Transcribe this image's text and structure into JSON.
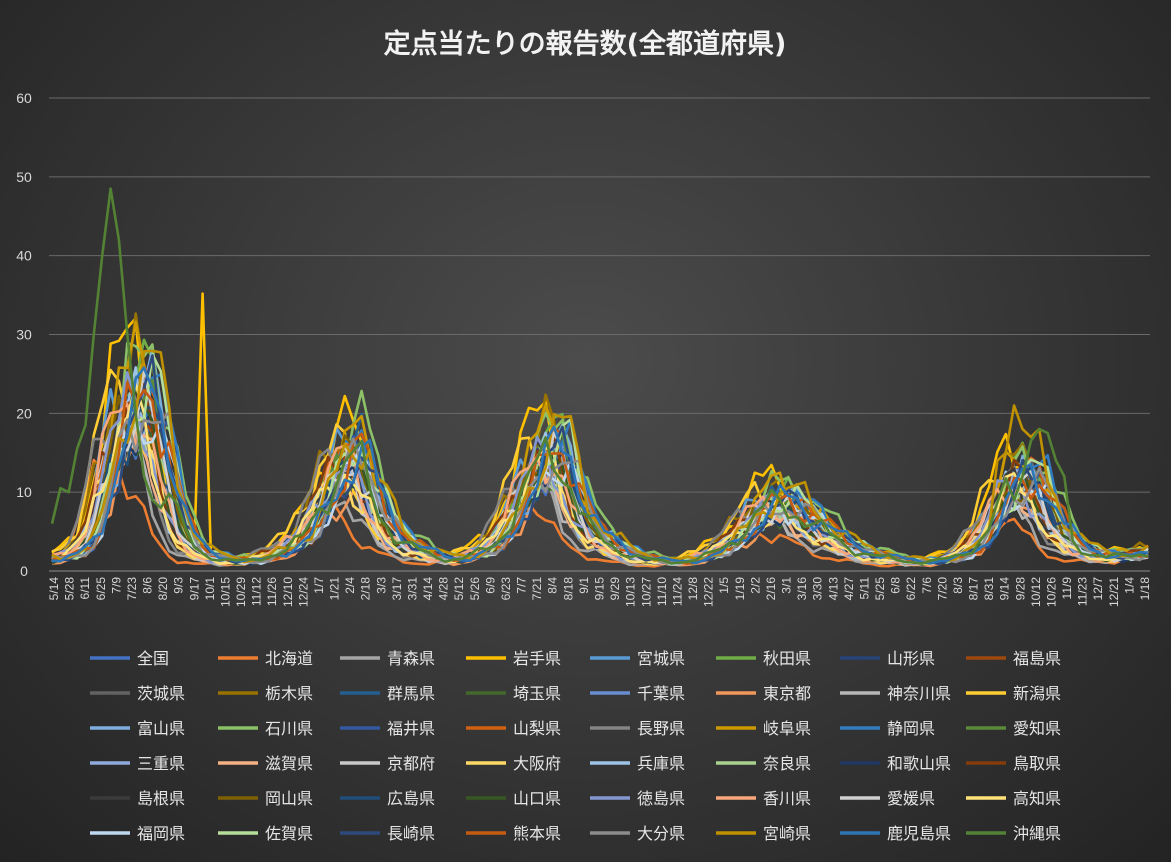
{
  "chart_data": {
    "type": "line",
    "title": "定点当たりの報告数(全都道府県)",
    "xlabel": "",
    "ylabel": "",
    "ylim": [
      0,
      60
    ],
    "yticks": [
      0,
      10,
      20,
      30,
      40,
      50,
      60
    ],
    "grid": "horizontal",
    "legend_position": "bottom",
    "x_tick_labels": [
      "5/14",
      "5/28",
      "6/11",
      "6/25",
      "7/9",
      "7/23",
      "8/6",
      "8/20",
      "9/3",
      "9/17",
      "10/1",
      "10/15",
      "10/29",
      "11/12",
      "11/26",
      "12/10",
      "12/24",
      "1/7",
      "1/21",
      "2/4",
      "2/18",
      "3/3",
      "3/17",
      "3/31",
      "4/14",
      "4/28",
      "5/12",
      "5/26",
      "6/9",
      "6/23",
      "7/7",
      "7/21",
      "8/4",
      "8/18",
      "9/1",
      "9/15",
      "9/29",
      "10/13",
      "10/27",
      "11/10",
      "11/24",
      "12/8",
      "12/22",
      "1/5",
      "1/19",
      "2/2",
      "2/16",
      "3/1",
      "3/16",
      "3/30",
      "4/13",
      "4/27",
      "5/11",
      "5/25",
      "6/8",
      "6/22",
      "7/6",
      "7/20",
      "8/3",
      "8/17",
      "8/31",
      "9/14",
      "9/28",
      "10/12",
      "10/26",
      "11/9",
      "11/23",
      "12/7",
      "12/21",
      "1/4",
      "1/18"
    ],
    "baseline": [
      1.5,
      1.7,
      2.0,
      2.6,
      3.5,
      5.5,
      10,
      14,
      18,
      19,
      21,
      22,
      19,
      16,
      11,
      7,
      4.5,
      3,
      2.2,
      1.9,
      1.6,
      1.4,
      1.3,
      1.2,
      1.3,
      1.6,
      2,
      2.4,
      2.8,
      3.5,
      4.2,
      6,
      8,
      10,
      12,
      13.5,
      14.5,
      13,
      10,
      8,
      6,
      4.5,
      3.6,
      3,
      2.5,
      2.1,
      1.8,
      1.6,
      1.5,
      1.6,
      1.9,
      2.3,
      2.8,
      3.6,
      5,
      7,
      9,
      11,
      13,
      14.5,
      15,
      14,
      11,
      8,
      6,
      4.5,
      3.8,
      3.2,
      2.6,
      2.1,
      1.8,
      1.5,
      1.3,
      1.2,
      1.2,
      1.2,
      1.3,
      1.5,
      1.8,
      2.2,
      2.8,
      3.6,
      4.5,
      5.5,
      6.8,
      7.8,
      8.3,
      8.5,
      8.2,
      7.5,
      6.8,
      6,
      5.2,
      4.4,
      3.8,
      3.2,
      2.7,
      2.3,
      2,
      1.8,
      1.6,
      1.4,
      1.3,
      1.2,
      1.2,
      1.2,
      1.3,
      1.5,
      1.8,
      2.3,
      3,
      4,
      5.5,
      7.5,
      9.5,
      11,
      11.5,
      11.2,
      10,
      8,
      6,
      4.5,
      3.4,
      2.8,
      2.4,
      2.1,
      1.9,
      1.8,
      1.8,
      1.9,
      2.1,
      2.4
    ],
    "series": [
      {
        "name": "全国",
        "color": "#4472C4",
        "scale": 0.92,
        "shift": 0,
        "seed": 1
      },
      {
        "name": "北海道",
        "color": "#ED7D31",
        "scale": 0.62,
        "shift": 3,
        "seed": 2
      },
      {
        "name": "青森県",
        "color": "#A5A5A5",
        "scale": 0.72,
        "shift": 2,
        "seed": 3
      },
      {
        "name": "岩手県",
        "color": "#FFC000",
        "scale": 1.35,
        "shift": 1,
        "seed": 4
      },
      {
        "name": "宮城県",
        "color": "#5B9BD5",
        "scale": 1.05,
        "shift": 1,
        "seed": 5
      },
      {
        "name": "秋田県",
        "color": "#70AD47",
        "scale": 1.15,
        "shift": 0,
        "seed": 6
      },
      {
        "name": "山形県",
        "color": "#264478",
        "scale": 0.95,
        "shift": 0,
        "seed": 7
      },
      {
        "name": "福島県",
        "color": "#9E480E",
        "scale": 1.0,
        "shift": -1,
        "seed": 8
      },
      {
        "name": "茨城県",
        "color": "#636363",
        "scale": 1.0,
        "shift": 0,
        "seed": 9
      },
      {
        "name": "栃木県",
        "color": "#997300",
        "scale": 1.2,
        "shift": 1,
        "seed": 10
      },
      {
        "name": "群馬県",
        "color": "#255E91",
        "scale": 1.08,
        "shift": -1,
        "seed": 11
      },
      {
        "name": "埼玉県",
        "color": "#43682B",
        "scale": 0.88,
        "shift": 0,
        "seed": 12
      },
      {
        "name": "千葉県",
        "color": "#698ED0",
        "scale": 0.92,
        "shift": 0,
        "seed": 13
      },
      {
        "name": "東京都",
        "color": "#F1975A",
        "scale": 0.7,
        "shift": 0,
        "seed": 14
      },
      {
        "name": "神奈川県",
        "color": "#B7B7B7",
        "scale": 0.78,
        "shift": 1,
        "seed": 15
      },
      {
        "name": "新潟県",
        "color": "#FFCD33",
        "scale": 1.1,
        "shift": 2,
        "seed": 16
      },
      {
        "name": "富山県",
        "color": "#7CAFDD",
        "scale": 1.05,
        "shift": -1,
        "seed": 17
      },
      {
        "name": "石川県",
        "color": "#8CC168",
        "scale": 1.3,
        "shift": -1,
        "seed": 18
      },
      {
        "name": "福井県",
        "color": "#335AA1",
        "scale": 1.0,
        "shift": -1,
        "seed": 19
      },
      {
        "name": "山梨県",
        "color": "#D26012",
        "scale": 1.1,
        "shift": 0,
        "seed": 20
      },
      {
        "name": "長野県",
        "color": "#848484",
        "scale": 1.0,
        "shift": 2,
        "seed": 21
      },
      {
        "name": "岐阜県",
        "color": "#CC9A00",
        "scale": 1.25,
        "shift": 0,
        "seed": 22
      },
      {
        "name": "静岡県",
        "color": "#327DC2",
        "scale": 1.15,
        "shift": -1,
        "seed": 23
      },
      {
        "name": "愛知県",
        "color": "#5A8A39",
        "scale": 1.0,
        "shift": 0,
        "seed": 24
      },
      {
        "name": "三重県",
        "color": "#8FAADC",
        "scale": 0.95,
        "shift": 0,
        "seed": 25
      },
      {
        "name": "滋賀県",
        "color": "#F4B183",
        "scale": 0.85,
        "shift": 1,
        "seed": 26
      },
      {
        "name": "京都府",
        "color": "#C9C9C9",
        "scale": 0.9,
        "shift": 1,
        "seed": 27
      },
      {
        "name": "大阪府",
        "color": "#FFD966",
        "scale": 0.85,
        "shift": 1,
        "seed": 28
      },
      {
        "name": "兵庫県",
        "color": "#9DC3E6",
        "scale": 0.92,
        "shift": 1,
        "seed": 29
      },
      {
        "name": "奈良県",
        "color": "#A9D18E",
        "scale": 0.95,
        "shift": 0,
        "seed": 30
      },
      {
        "name": "和歌山県",
        "color": "#1F3864",
        "scale": 0.9,
        "shift": 0,
        "seed": 31
      },
      {
        "name": "鳥取県",
        "color": "#843C0C",
        "scale": 1.0,
        "shift": 1,
        "seed": 32
      },
      {
        "name": "島根県",
        "color": "#3B3B3B",
        "scale": 0.95,
        "shift": 1,
        "seed": 33
      },
      {
        "name": "岡山県",
        "color": "#7F6000",
        "scale": 1.0,
        "shift": 0,
        "seed": 34
      },
      {
        "name": "広島県",
        "color": "#1F4E79",
        "scale": 0.95,
        "shift": 0,
        "seed": 35
      },
      {
        "name": "山口県",
        "color": "#385723",
        "scale": 0.9,
        "shift": 0,
        "seed": 36
      },
      {
        "name": "徳島県",
        "color": "#8497D0",
        "scale": 0.95,
        "shift": 1,
        "seed": 37
      },
      {
        "name": "香川県",
        "color": "#F8A77A",
        "scale": 1.0,
        "shift": 1,
        "seed": 38
      },
      {
        "name": "愛媛県",
        "color": "#D0D0D0",
        "scale": 0.95,
        "shift": 0,
        "seed": 39
      },
      {
        "name": "高知県",
        "color": "#FFE37A",
        "scale": 0.9,
        "shift": 1,
        "seed": 40
      },
      {
        "name": "福岡県",
        "color": "#BDD7EE",
        "scale": 0.95,
        "shift": -1,
        "seed": 41
      },
      {
        "name": "佐賀県",
        "color": "#B4DE9A",
        "scale": 1.1,
        "shift": -1,
        "seed": 42
      },
      {
        "name": "長崎県",
        "color": "#2E4A7C",
        "scale": 1.0,
        "shift": -1,
        "seed": 43
      },
      {
        "name": "熊本県",
        "color": "#C55A11",
        "scale": 1.05,
        "shift": -1,
        "seed": 44
      },
      {
        "name": "大分県",
        "color": "#8C8C8C",
        "scale": 1.0,
        "shift": -1,
        "seed": 45
      },
      {
        "name": "宮崎県",
        "color": "#BF9000",
        "scale": 1.2,
        "shift": -1,
        "seed": 46
      },
      {
        "name": "鹿児島県",
        "color": "#2E75B6",
        "scale": 1.05,
        "shift": -1,
        "seed": 47
      },
      {
        "name": "沖縄県",
        "color": "#548235",
        "scale": 1.0,
        "shift": 0,
        "seed": 48
      }
    ]
  }
}
